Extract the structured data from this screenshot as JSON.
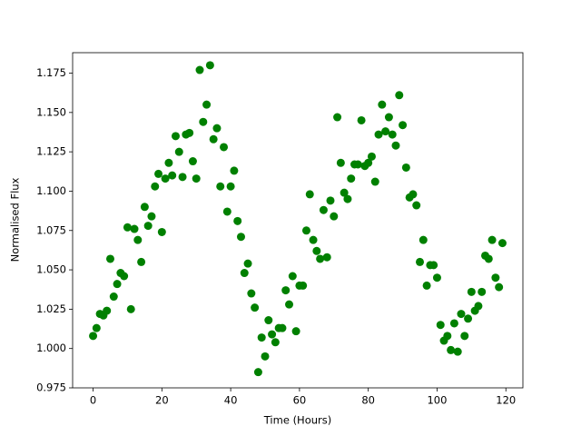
{
  "chart_data": {
    "type": "scatter",
    "xlabel": "Time (Hours)",
    "ylabel": "Normalised Flux",
    "color": "#008000",
    "xlim": [
      -5.95,
      124.95
    ],
    "ylim": [
      0.975,
      1.188
    ],
    "xticks": [
      0,
      20,
      40,
      60,
      80,
      100,
      120
    ],
    "yticks": [
      0.975,
      {
        "value": 1,
        "label": "1.000"
      },
      1.025,
      {
        "value": 1.05,
        "label": "1.050"
      },
      1.075,
      {
        "value": 1.1,
        "label": "1.100"
      },
      1.125,
      {
        "value": 1.15,
        "label": "1.150"
      },
      1.175
    ],
    "x": [
      0,
      1,
      2,
      3,
      4,
      5,
      6,
      7,
      8,
      9,
      10,
      11,
      12,
      13,
      14,
      15,
      16,
      17,
      18,
      19,
      20,
      21,
      22,
      23,
      24,
      25,
      26,
      27,
      28,
      29,
      30,
      31,
      32,
      33,
      34,
      35,
      36,
      37,
      38,
      39,
      40,
      41,
      42,
      43,
      44,
      45,
      46,
      47,
      48,
      49,
      50,
      51,
      52,
      53,
      54,
      55,
      56,
      57,
      58,
      59,
      60,
      61,
      62,
      63,
      64,
      65,
      66,
      67,
      68,
      69,
      70,
      71,
      72,
      73,
      74,
      75,
      76,
      77,
      78,
      79,
      80,
      81,
      82,
      83,
      84,
      85,
      86,
      87,
      88,
      89,
      90,
      91,
      92,
      93,
      94,
      95,
      96,
      97,
      98,
      99,
      100,
      101,
      102,
      103,
      104,
      105,
      106,
      107,
      108,
      109,
      110,
      111,
      112,
      113,
      114,
      115,
      116,
      117,
      118,
      119
    ],
    "values": [
      1.008,
      1.013,
      1.022,
      1.021,
      1.024,
      1.057,
      1.033,
      1.041,
      1.048,
      1.046,
      1.077,
      1.025,
      1.076,
      1.069,
      1.055,
      1.09,
      1.078,
      1.084,
      1.103,
      1.111,
      1.074,
      1.108,
      1.118,
      1.11,
      1.135,
      1.125,
      1.109,
      1.136,
      1.137,
      1.119,
      1.108,
      1.177,
      1.144,
      1.155,
      1.18,
      1.133,
      1.14,
      1.103,
      1.128,
      1.087,
      1.103,
      1.113,
      1.081,
      1.071,
      1.048,
      1.054,
      1.035,
      1.026,
      0.985,
      1.007,
      0.995,
      1.018,
      1.009,
      1.004,
      1.013,
      1.013,
      1.037,
      1.028,
      1.046,
      1.011,
      1.04,
      1.04,
      1.075,
      1.098,
      1.069,
      1.062,
      1.057,
      1.088,
      1.058,
      1.094,
      1.084,
      1.147,
      1.118,
      1.099,
      1.095,
      1.108,
      1.117,
      1.117,
      1.145,
      1.116,
      1.118,
      1.122,
      1.106,
      1.136,
      1.155,
      1.138,
      1.147,
      1.136,
      1.129,
      1.161,
      1.142,
      1.115,
      1.096,
      1.098,
      1.091,
      1.055,
      1.069,
      1.04,
      1.053,
      1.053,
      1.045,
      1.015,
      1.005,
      1.008,
      0.999,
      1.016,
      0.998,
      1.022,
      1.008,
      1.019,
      1.036,
      1.024,
      1.027,
      1.036,
      1.059,
      1.057,
      1.069,
      1.045,
      1.039,
      1.067
    ]
  }
}
